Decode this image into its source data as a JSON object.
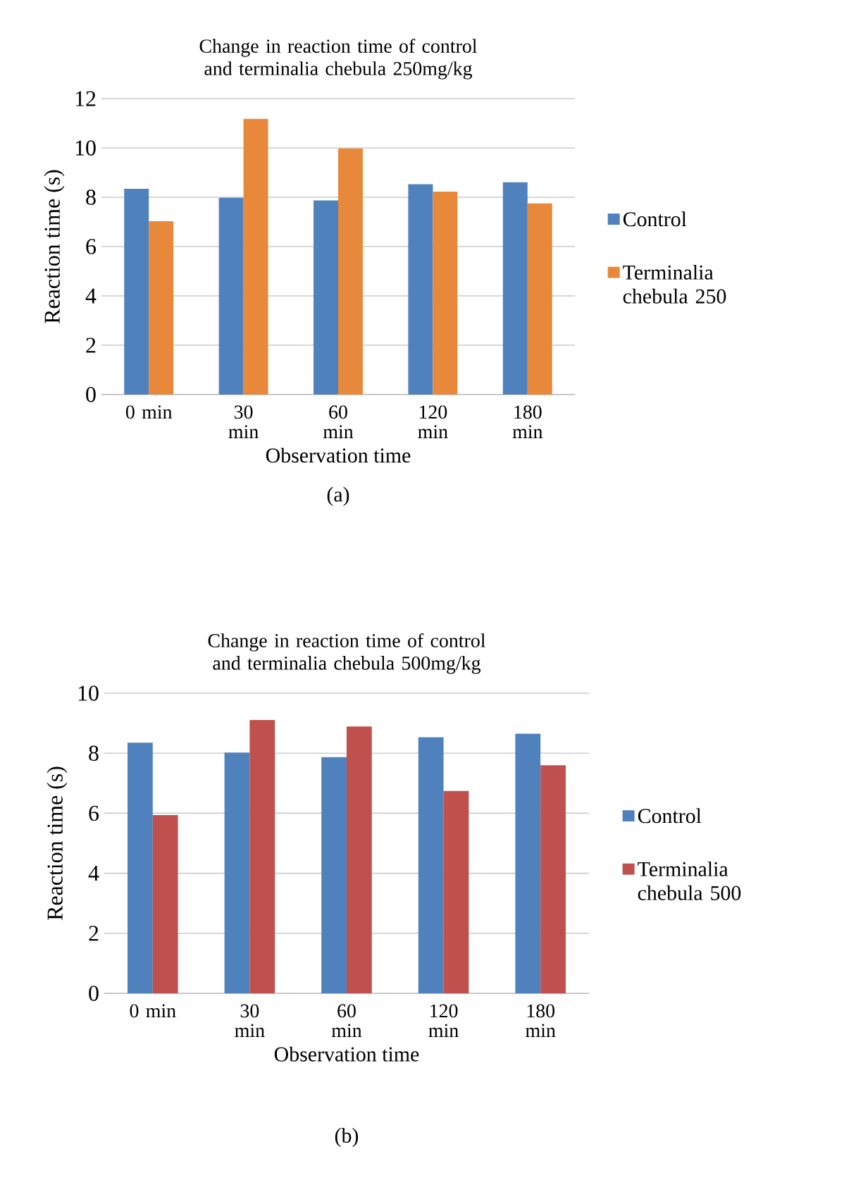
{
  "chart_data": [
    {
      "type": "bar",
      "title": "Change in reaction time of control and terminalia chebula 250mg/kg",
      "xlabel": "Observation time",
      "ylabel": "Reaction time (s)",
      "categories": [
        "0 min",
        "30 min",
        "60 min",
        "120 min",
        "180 min"
      ],
      "series": [
        {
          "name": "Control",
          "color": "#4f81bd",
          "values": [
            8.34,
            7.98,
            7.87,
            8.53,
            8.61
          ]
        },
        {
          "name": "Terminalia chebula 250",
          "color": "#e8883a",
          "values": [
            7.03,
            11.18,
            9.98,
            8.23,
            7.75
          ]
        }
      ],
      "ylim": [
        0,
        12
      ],
      "yticks": [
        0,
        2,
        4,
        6,
        8,
        10,
        12
      ],
      "grid": "y",
      "legend": "right",
      "annotations": [
        "(a)"
      ]
    },
    {
      "type": "bar",
      "title": "Change in reaction time of control and terminalia chebula 500mg/kg",
      "xlabel": "Observation time",
      "ylabel": "Reaction time (s)",
      "categories": [
        "0 min",
        "30 min",
        "60 min",
        "120 min",
        "180 min"
      ],
      "series": [
        {
          "name": "Control",
          "color": "#4f81bd",
          "values": [
            8.35,
            8.02,
            7.87,
            8.53,
            8.65
          ]
        },
        {
          "name": "Terminalia chebula 500",
          "color": "#c0504d",
          "values": [
            5.94,
            9.11,
            8.89,
            6.74,
            7.6
          ]
        }
      ],
      "ylim": [
        0,
        10
      ],
      "yticks": [
        0,
        2,
        4,
        6,
        8,
        10
      ],
      "grid": "y",
      "legend": "right",
      "annotations": [
        "(b)"
      ]
    }
  ]
}
